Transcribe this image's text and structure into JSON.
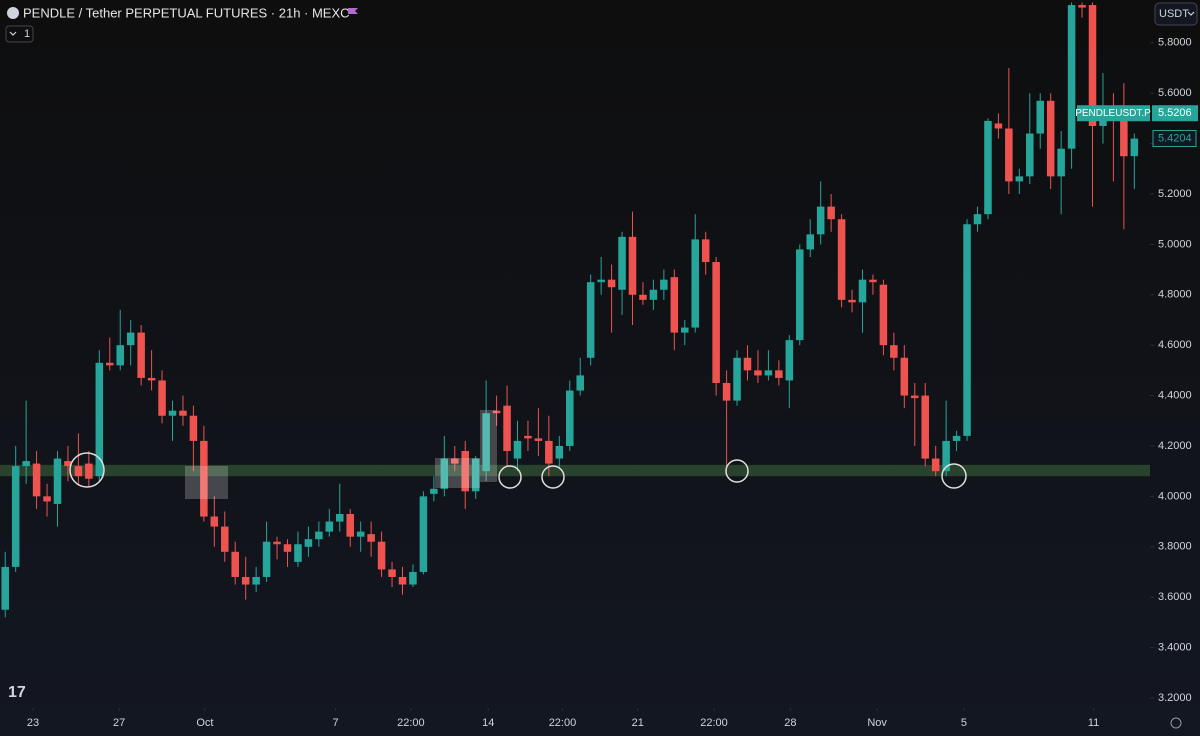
{
  "chart_data": {
    "type": "candlestick",
    "title": "PENDLE / Tether PERPETUAL FUTURES · 21h · MEXC",
    "currency": "USDT",
    "indicator_count": "1",
    "up_color": "#26a69a",
    "down_color": "#ef5350",
    "ylim": [
      3.16,
      5.97
    ],
    "xlim": [
      -0.5,
      109.5
    ],
    "yticks": [
      {
        "value": 3.2,
        "label": "3.2000"
      },
      {
        "value": 3.4,
        "label": "3.4000"
      },
      {
        "value": 3.6,
        "label": "3.6000"
      },
      {
        "value": 3.8,
        "label": "3.8000"
      },
      {
        "value": 4.0,
        "label": "4.0000"
      },
      {
        "value": 4.2,
        "label": "4.2000"
      },
      {
        "value": 4.4,
        "label": "4.4000"
      },
      {
        "value": 4.6,
        "label": "4.6000"
      },
      {
        "value": 4.8,
        "label": "4.8000"
      },
      {
        "value": 5.0,
        "label": "5.0000"
      },
      {
        "value": 5.2,
        "label": "5.2000"
      },
      {
        "value": 5.4,
        "label": "5.4000"
      },
      {
        "value": 5.6,
        "label": "5.6000"
      },
      {
        "value": 5.8,
        "label": "5.8000"
      }
    ],
    "xticks": [
      {
        "value": 2.66,
        "label": "23"
      },
      {
        "value": 10.9,
        "label": "27"
      },
      {
        "value": 19.1,
        "label": "Oct"
      },
      {
        "value": 31.6,
        "label": "7"
      },
      {
        "value": 38.8,
        "label": "22:00"
      },
      {
        "value": 46.2,
        "label": "14"
      },
      {
        "value": 53.3,
        "label": "22:00"
      },
      {
        "value": 60.5,
        "label": "21"
      },
      {
        "value": 67.8,
        "label": "22:00"
      },
      {
        "value": 75.1,
        "label": "28"
      },
      {
        "value": 83.4,
        "label": "Nov"
      },
      {
        "value": 91.7,
        "label": "5"
      },
      {
        "value": 104.1,
        "label": "11"
      }
    ],
    "support_zone": [
      4.08,
      4.125
    ],
    "price_labels": [
      {
        "name": "PENDLEUSDT.P",
        "value": 5.5206
      },
      {
        "value": 5.4204
      }
    ],
    "candles": [
      [
        3.55,
        3.78,
        3.52,
        3.72
      ],
      [
        3.72,
        4.2,
        3.7,
        4.12
      ],
      [
        4.12,
        4.38,
        4.05,
        4.14
      ],
      [
        4.13,
        4.18,
        3.95,
        4.0
      ],
      [
        4.0,
        4.05,
        3.92,
        3.98
      ],
      [
        3.97,
        4.18,
        3.88,
        4.15
      ],
      [
        4.14,
        4.2,
        4.06,
        4.12
      ],
      [
        4.12,
        4.25,
        4.05,
        4.08
      ],
      [
        4.13,
        4.18,
        4.04,
        4.07
      ],
      [
        4.08,
        4.58,
        4.06,
        4.53
      ],
      [
        4.53,
        4.63,
        4.5,
        4.52
      ],
      [
        4.52,
        4.74,
        4.5,
        4.6
      ],
      [
        4.6,
        4.7,
        4.52,
        4.65
      ],
      [
        4.65,
        4.68,
        4.44,
        4.47
      ],
      [
        4.47,
        4.58,
        4.42,
        4.46
      ],
      [
        4.46,
        4.5,
        4.29,
        4.32
      ],
      [
        4.32,
        4.38,
        4.22,
        4.34
      ],
      [
        4.34,
        4.4,
        4.28,
        4.32
      ],
      [
        4.32,
        4.36,
        4.1,
        4.22
      ],
      [
        4.22,
        4.28,
        3.9,
        3.92
      ],
      [
        3.92,
        4.0,
        3.8,
        3.88
      ],
      [
        3.88,
        3.94,
        3.74,
        3.78
      ],
      [
        3.78,
        3.82,
        3.65,
        3.68
      ],
      [
        3.68,
        3.76,
        3.59,
        3.65
      ],
      [
        3.65,
        3.72,
        3.62,
        3.68
      ],
      [
        3.68,
        3.9,
        3.66,
        3.82
      ],
      [
        3.82,
        3.84,
        3.75,
        3.81
      ],
      [
        3.81,
        3.83,
        3.72,
        3.78
      ],
      [
        3.74,
        3.86,
        3.72,
        3.81
      ],
      [
        3.8,
        3.88,
        3.76,
        3.83
      ],
      [
        3.83,
        3.9,
        3.8,
        3.86
      ],
      [
        3.86,
        3.95,
        3.84,
        3.9
      ],
      [
        3.9,
        4.05,
        3.86,
        3.93
      ],
      [
        3.93,
        3.95,
        3.8,
        3.84
      ],
      [
        3.84,
        3.9,
        3.78,
        3.86
      ],
      [
        3.85,
        3.9,
        3.76,
        3.82
      ],
      [
        3.82,
        3.86,
        3.68,
        3.71
      ],
      [
        3.71,
        3.74,
        3.64,
        3.68
      ],
      [
        3.68,
        3.72,
        3.61,
        3.65
      ],
      [
        3.65,
        3.73,
        3.64,
        3.7
      ],
      [
        3.7,
        4.02,
        3.69,
        4.0
      ],
      [
        4.01,
        4.08,
        3.98,
        4.03
      ],
      [
        4.03,
        4.24,
        4.0,
        4.15
      ],
      [
        4.15,
        4.2,
        4.1,
        4.13
      ],
      [
        4.18,
        4.22,
        3.95,
        4.02
      ],
      [
        4.02,
        4.16,
        3.99,
        4.15
      ],
      [
        4.1,
        4.46,
        4.06,
        4.33
      ],
      [
        4.34,
        4.4,
        4.28,
        4.33
      ],
      [
        4.36,
        4.44,
        4.12,
        4.18
      ],
      [
        4.15,
        4.3,
        4.1,
        4.22
      ],
      [
        4.24,
        4.3,
        4.18,
        4.23
      ],
      [
        4.23,
        4.35,
        4.16,
        4.22
      ],
      [
        4.22,
        4.32,
        4.08,
        4.13
      ],
      [
        4.15,
        4.24,
        4.11,
        4.2
      ],
      [
        4.2,
        4.46,
        4.18,
        4.42
      ],
      [
        4.42,
        4.55,
        4.4,
        4.48
      ],
      [
        4.55,
        4.88,
        4.52,
        4.85
      ],
      [
        4.85,
        4.95,
        4.8,
        4.86
      ],
      [
        4.86,
        4.92,
        4.65,
        4.83
      ],
      [
        4.82,
        5.05,
        4.72,
        5.03
      ],
      [
        5.03,
        5.13,
        4.68,
        4.8
      ],
      [
        4.8,
        4.85,
        4.76,
        4.78
      ],
      [
        4.78,
        4.86,
        4.74,
        4.82
      ],
      [
        4.82,
        4.9,
        4.78,
        4.86
      ],
      [
        4.87,
        4.9,
        4.58,
        4.65
      ],
      [
        4.65,
        4.7,
        4.6,
        4.67
      ],
      [
        4.67,
        5.12,
        4.65,
        5.02
      ],
      [
        5.02,
        5.05,
        4.88,
        4.93
      ],
      [
        4.93,
        4.95,
        4.4,
        4.45
      ],
      [
        4.45,
        4.5,
        4.12,
        4.38
      ],
      [
        4.38,
        4.58,
        4.36,
        4.55
      ],
      [
        4.55,
        4.6,
        4.46,
        4.5
      ],
      [
        4.5,
        4.58,
        4.45,
        4.48
      ],
      [
        4.48,
        4.58,
        4.46,
        4.5
      ],
      [
        4.5,
        4.54,
        4.44,
        4.47
      ],
      [
        4.46,
        4.64,
        4.35,
        4.62
      ],
      [
        4.62,
        5.0,
        4.6,
        4.98
      ],
      [
        4.98,
        5.1,
        4.95,
        5.04
      ],
      [
        5.04,
        5.25,
        5.0,
        5.15
      ],
      [
        5.15,
        5.2,
        5.05,
        5.1
      ],
      [
        5.1,
        5.12,
        4.75,
        4.78
      ],
      [
        4.78,
        4.82,
        4.73,
        4.77
      ],
      [
        4.77,
        4.9,
        4.65,
        4.86
      ],
      [
        4.86,
        4.88,
        4.8,
        4.85
      ],
      [
        4.84,
        4.86,
        4.56,
        4.6
      ],
      [
        4.6,
        4.65,
        4.5,
        4.55
      ],
      [
        4.55,
        4.6,
        4.35,
        4.4
      ],
      [
        4.4,
        4.45,
        4.2,
        4.39
      ],
      [
        4.4,
        4.45,
        4.12,
        4.15
      ],
      [
        4.15,
        4.2,
        4.08,
        4.1
      ],
      [
        4.1,
        4.38,
        4.08,
        4.22
      ],
      [
        4.22,
        4.26,
        4.18,
        4.24
      ],
      [
        4.24,
        5.1,
        4.22,
        5.08
      ],
      [
        5.08,
        5.15,
        5.05,
        5.12
      ],
      [
        5.12,
        5.5,
        5.1,
        5.49
      ],
      [
        5.48,
        5.52,
        5.42,
        5.46
      ],
      [
        5.46,
        5.7,
        5.2,
        5.25
      ],
      [
        5.25,
        5.3,
        5.2,
        5.27
      ],
      [
        5.27,
        5.6,
        5.24,
        5.44
      ],
      [
        5.44,
        5.6,
        5.38,
        5.57
      ],
      [
        5.57,
        5.6,
        5.22,
        5.27
      ],
      [
        5.27,
        5.45,
        5.12,
        5.38
      ],
      [
        5.38,
        5.96,
        5.3,
        5.95
      ],
      [
        5.95,
        5.96,
        5.9,
        5.94
      ],
      [
        5.95,
        5.96,
        5.15,
        5.47
      ],
      [
        5.47,
        5.68,
        5.4,
        5.55
      ],
      [
        5.55,
        5.6,
        5.25,
        5.52
      ],
      [
        5.52,
        5.64,
        5.06,
        5.35
      ],
      [
        5.35,
        5.44,
        5.22,
        5.42
      ]
    ]
  }
}
